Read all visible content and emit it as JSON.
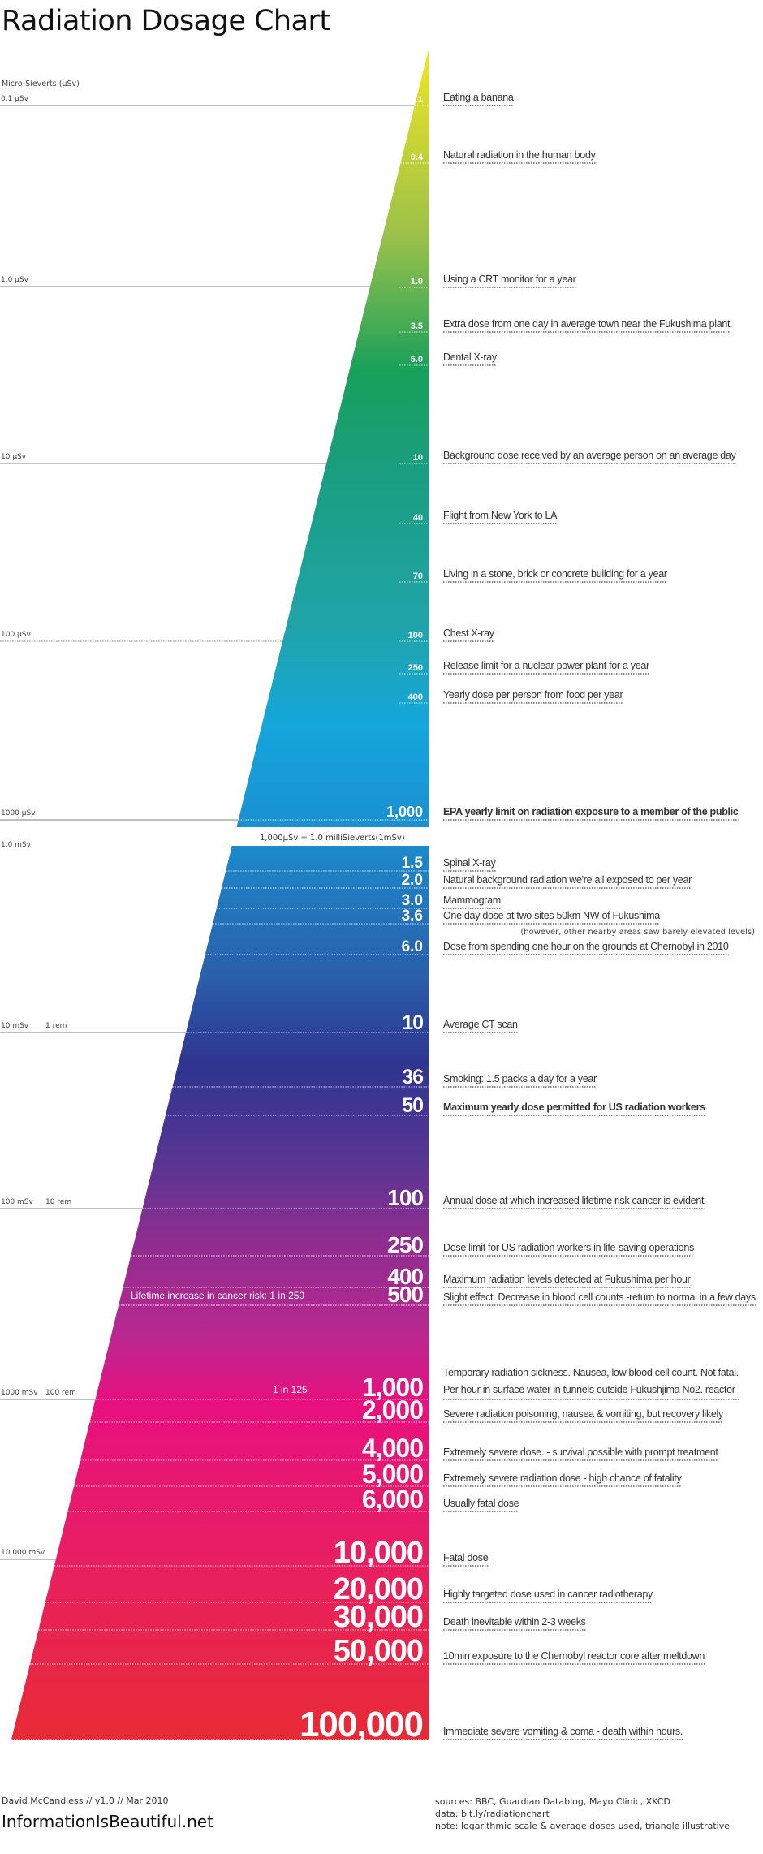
{
  "title": "Radiation Dosage Chart",
  "chart_data": {
    "type": "table",
    "title": "Radiation Dosage Chart",
    "scale_note": "logarithmic scale",
    "unit_label": "Micro-Sieverts (µSv)",
    "conversion_note": "1,000µSv = 1.0 milliSieverts(1mSv)",
    "axis_labels": [
      {
        "label": "0.1 µSv",
        "rem": ""
      },
      {
        "label": "1.0 µSv",
        "rem": ""
      },
      {
        "label": "10 µSv",
        "rem": ""
      },
      {
        "label": "100 µSv",
        "rem": ""
      },
      {
        "label": "1000 µSv",
        "rem": ""
      },
      {
        "label": "1.0 mSv",
        "rem": ""
      },
      {
        "label": "10 mSv",
        "rem": "1 rem"
      },
      {
        "label": "100 mSv",
        "rem": "10 rem"
      },
      {
        "label": "1000 mSv",
        "rem": "100 rem"
      },
      {
        "label": "10,000 mSv",
        "rem": ""
      }
    ],
    "micro_sievert_entries": [
      {
        "value": ".1",
        "label": "Eating a banana",
        "bold": false
      },
      {
        "value": "0.4",
        "label": "Natural radiation in the human body",
        "bold": false
      },
      {
        "value": "1.0",
        "label": "Using a CRT monitor for a year",
        "bold": false
      },
      {
        "value": "3.5",
        "label": "Extra dose from one day in average town near the Fukushima plant",
        "bold": false
      },
      {
        "value": "5.0",
        "label": "Dental X-ray",
        "bold": false
      },
      {
        "value": "10",
        "label": "Background dose received by an average person on an average day",
        "bold": false
      },
      {
        "value": "40",
        "label": "Flight from New York to LA",
        "bold": false
      },
      {
        "value": "70",
        "label": "Living in a stone, brick or concrete building for a year",
        "bold": false
      },
      {
        "value": "100",
        "label": "Chest X-ray",
        "bold": false
      },
      {
        "value": "250",
        "label": "Release limit for a nuclear power plant for a year",
        "bold": false
      },
      {
        "value": "400",
        "label": "Yearly dose per person from food per year",
        "bold": false
      },
      {
        "value": "1,000",
        "label": "EPA yearly limit on radiation exposure to a member of the public",
        "bold": true
      }
    ],
    "milli_sievert_entries": [
      {
        "value": "1.5",
        "label": "Spinal X-ray",
        "bold": false
      },
      {
        "value": "2.0",
        "label": "Natural background radiation we're all exposed to per year",
        "bold": false
      },
      {
        "value": "3.0",
        "label": "Mammogram",
        "bold": false
      },
      {
        "value": "3.6",
        "label": "One day dose at two sites 50km NW of Fukushima",
        "note": "(however, other nearby areas saw barely elevated levels)",
        "bold": false
      },
      {
        "value": "6.0",
        "label": "Dose from spending one hour on the grounds at Chernobyl in 2010",
        "bold": false
      },
      {
        "value": "10",
        "label": "Average CT scan",
        "bold": false
      },
      {
        "value": "36",
        "label": "Smoking: 1.5 packs a day for a year",
        "bold": false
      },
      {
        "value": "50",
        "label": "Maximum yearly dose permitted for US radiation workers",
        "bold": true
      },
      {
        "value": "100",
        "label": "Annual dose at which increased lifetime risk cancer is evident",
        "bold": false
      },
      {
        "value": "250",
        "label": "Dose limit for US radiation workers in life-saving operations",
        "bold": false
      },
      {
        "value": "400",
        "label": "Maximum radiation levels detected at Fukushima per hour",
        "bold": false
      },
      {
        "value": "500",
        "label": "Slight effect. Decrease in blood cell counts -return to normal in a few days",
        "risk": "Lifetime increase in cancer risk:  1 in 250",
        "bold": false
      },
      {
        "value": "1,000",
        "label": "Temporary radiation sickness. Nausea, low blood cell count. Not fatal.",
        "label2": "Per hour in surface water in tunnels outside Fukushjima No2. reactor",
        "risk": "1 in 125",
        "bold": false
      },
      {
        "value": "2,000",
        "label": "Severe radiation poisoning, nausea & vomiting, but recovery likely",
        "bold": false
      },
      {
        "value": "4,000",
        "label": "Extremely severe dose. - survival possible with prompt treatment",
        "bold": false
      },
      {
        "value": "5,000",
        "label": "Extremely severe radiation dose - high chance of fatality",
        "bold": false
      },
      {
        "value": "6,000",
        "label": "Usually fatal dose",
        "bold": false
      },
      {
        "value": "10,000",
        "label": "Fatal dose",
        "bold": false
      },
      {
        "value": "20,000",
        "label": "Highly targeted dose used in cancer radiotherapy",
        "bold": false
      },
      {
        "value": "30,000",
        "label": "Death inevitable within 2-3 weeks",
        "bold": false
      },
      {
        "value": "50,000",
        "label": "10min exposure to the Chernobyl reactor core after meltdown",
        "bold": false
      },
      {
        "value": "100,000",
        "label": "Immediate severe vomiting  & coma - death within hours.",
        "bold": false
      }
    ],
    "colors": {
      "top": "#f0e620",
      "green": "#18a05a",
      "blue": "#14a6dc",
      "navy": "#2e3590",
      "purple": "#8a2e90",
      "magenta": "#e8107f",
      "bottom": "#e82a35"
    }
  },
  "footer": {
    "credit": "David McCandless // v1.0 // Mar 2010",
    "site": "InformationIsBeautiful.net",
    "sources": "sources: BBC, Guardian Datablog, Mayo Clinic, XKCD",
    "data": "data: bit.ly/radiationchart",
    "note": "note: logarithmic scale & average doses used, triangle illustrative"
  }
}
